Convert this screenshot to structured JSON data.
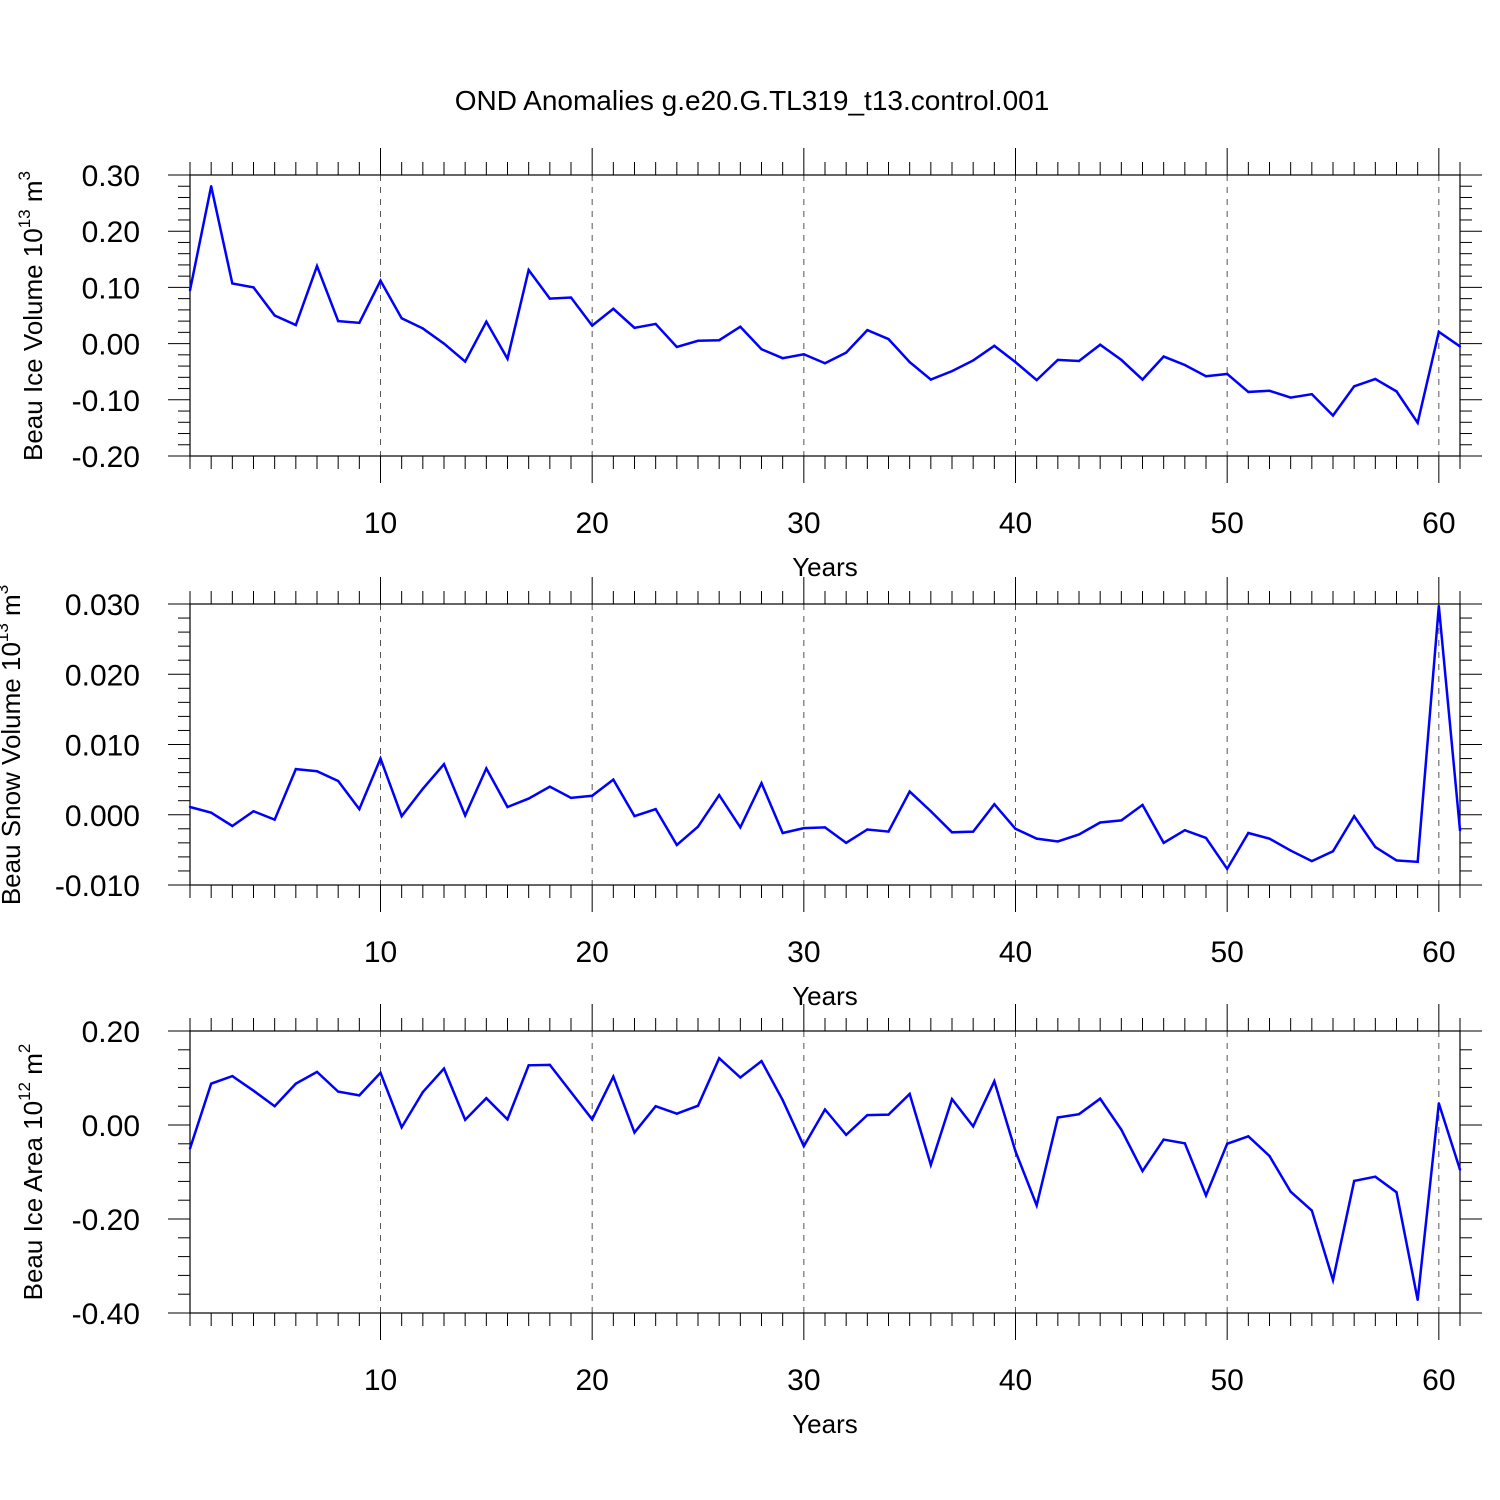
{
  "title": "OND Anomalies g.e20.G.TL319_t13.control.001",
  "colors": {
    "line": "#0000ff",
    "axis": "#000000",
    "grid": "#555555",
    "background": "#ffffff"
  },
  "chart_data": [
    {
      "type": "line",
      "xlabel": "Years",
      "ylabel": {
        "text": "Beau Ice Volume 10",
        "exp": "13",
        "unit": " m",
        "unit_exp": "3"
      },
      "xlim": [
        1,
        61
      ],
      "ylim": [
        -0.2,
        0.3
      ],
      "xticks": [
        10,
        20,
        30,
        40,
        50,
        60
      ],
      "xtick_labels": [
        "10",
        "20",
        "30",
        "40",
        "50",
        "60"
      ],
      "yticks": [
        -0.2,
        -0.1,
        0.0,
        0.1,
        0.2,
        0.3
      ],
      "ytick_labels": [
        "-0.20",
        "-0.10",
        "0.00",
        "0.10",
        "0.20",
        "0.30"
      ],
      "grid": "vertical dashed at x ticks",
      "x": [
        1,
        2,
        3,
        4,
        5,
        6,
        7,
        8,
        9,
        10,
        11,
        12,
        13,
        14,
        15,
        16,
        17,
        18,
        19,
        20,
        21,
        22,
        23,
        24,
        25,
        26,
        27,
        28,
        29,
        30,
        31,
        32,
        33,
        34,
        35,
        36,
        37,
        38,
        39,
        40,
        41,
        42,
        43,
        44,
        45,
        46,
        47,
        48,
        49,
        50,
        51,
        52,
        53,
        54,
        55,
        56,
        57,
        58,
        59,
        60,
        61
      ],
      "values": [
        0.095,
        0.28,
        0.107,
        0.1,
        0.05,
        0.033,
        0.138,
        0.04,
        0.037,
        0.112,
        0.045,
        0.027,
        0.0,
        -0.032,
        0.039,
        -0.027,
        0.131,
        0.08,
        0.082,
        0.032,
        0.062,
        0.028,
        0.035,
        -0.006,
        0.005,
        0.006,
        0.03,
        -0.01,
        -0.026,
        -0.019,
        -0.035,
        -0.016,
        0.024,
        0.008,
        -0.033,
        -0.064,
        -0.049,
        -0.03,
        -0.004,
        -0.033,
        -0.065,
        -0.029,
        -0.031,
        -0.002,
        -0.029,
        -0.064,
        -0.023,
        -0.038,
        -0.058,
        -0.054,
        -0.086,
        -0.084,
        -0.096,
        -0.09,
        -0.128,
        -0.076,
        -0.063,
        -0.085,
        -0.141,
        0.021,
        -0.005
      ]
    },
    {
      "type": "line",
      "xlabel": "Years",
      "ylabel": {
        "text": "Beau Snow Volume 10",
        "exp": "13",
        "unit": " m",
        "unit_exp": "3"
      },
      "xlim": [
        1,
        61
      ],
      "ylim": [
        -0.01,
        0.03
      ],
      "xticks": [
        10,
        20,
        30,
        40,
        50,
        60
      ],
      "xtick_labels": [
        "10",
        "20",
        "30",
        "40",
        "50",
        "60"
      ],
      "yticks": [
        -0.01,
        0.0,
        0.01,
        0.02,
        0.03
      ],
      "ytick_labels": [
        "-0.010",
        "0.000",
        "0.010",
        "0.020",
        "0.030"
      ],
      "grid": "vertical dashed at x ticks",
      "x": [
        1,
        2,
        3,
        4,
        5,
        6,
        7,
        8,
        9,
        10,
        11,
        12,
        13,
        14,
        15,
        16,
        17,
        18,
        19,
        20,
        21,
        22,
        23,
        24,
        25,
        26,
        27,
        28,
        29,
        30,
        31,
        32,
        33,
        34,
        35,
        36,
        37,
        38,
        39,
        40,
        41,
        42,
        43,
        44,
        45,
        46,
        47,
        48,
        49,
        50,
        51,
        52,
        53,
        54,
        55,
        56,
        57,
        58,
        59,
        60,
        61
      ],
      "values": [
        0.0011,
        0.0003,
        -0.0016,
        0.0005,
        -0.0007,
        0.0065,
        0.0062,
        0.0048,
        0.0008,
        0.008,
        -0.0002,
        0.0037,
        0.0072,
        -0.0001,
        0.0066,
        0.0011,
        0.0023,
        0.004,
        0.0024,
        0.0027,
        0.005,
        -0.0002,
        0.0008,
        -0.0043,
        -0.0017,
        0.0028,
        -0.0018,
        0.0045,
        -0.0026,
        -0.0019,
        -0.0018,
        -0.004,
        -0.0021,
        -0.0024,
        0.0033,
        0.0005,
        -0.0025,
        -0.0024,
        0.0015,
        -0.002,
        -0.0034,
        -0.0038,
        -0.0028,
        -0.0011,
        -0.0008,
        0.0014,
        -0.004,
        -0.0022,
        -0.0033,
        -0.0077,
        -0.0026,
        -0.0034,
        -0.0051,
        -0.0066,
        -0.0052,
        -0.0002,
        -0.0046,
        -0.0065,
        -0.0067,
        0.0297,
        -0.0022
      ]
    },
    {
      "type": "line",
      "xlabel": "Years",
      "ylabel": {
        "text": "Beau Ice Area 10",
        "exp": "12",
        "unit": " m",
        "unit_exp": "2"
      },
      "xlim": [
        1,
        61
      ],
      "ylim": [
        -0.4,
        0.2
      ],
      "xticks": [
        10,
        20,
        30,
        40,
        50,
        60
      ],
      "xtick_labels": [
        "10",
        "20",
        "30",
        "40",
        "50",
        "60"
      ],
      "yticks": [
        -0.4,
        -0.2,
        0.0,
        0.2
      ],
      "ytick_labels": [
        "-0.40",
        "-0.20",
        "0.00",
        "0.20"
      ],
      "grid": "vertical dashed at x ticks",
      "x": [
        1,
        2,
        3,
        4,
        5,
        6,
        7,
        8,
        9,
        10,
        11,
        12,
        13,
        14,
        15,
        16,
        17,
        18,
        19,
        20,
        21,
        22,
        23,
        24,
        25,
        26,
        27,
        28,
        29,
        30,
        31,
        32,
        33,
        34,
        35,
        36,
        37,
        38,
        39,
        40,
        41,
        42,
        43,
        44,
        45,
        46,
        47,
        48,
        49,
        50,
        51,
        52,
        53,
        54,
        55,
        56,
        57,
        58,
        59,
        60,
        61
      ],
      "values": [
        -0.05,
        0.088,
        0.104,
        0.073,
        0.04,
        0.088,
        0.113,
        0.071,
        0.063,
        0.111,
        -0.005,
        0.07,
        0.12,
        0.011,
        0.057,
        0.012,
        0.127,
        0.128,
        0.07,
        0.012,
        0.103,
        -0.016,
        0.04,
        0.024,
        0.041,
        0.142,
        0.101,
        0.136,
        0.053,
        -0.045,
        0.033,
        -0.021,
        0.021,
        0.022,
        0.066,
        -0.085,
        0.055,
        -0.003,
        0.093,
        -0.056,
        -0.171,
        0.016,
        0.023,
        0.056,
        -0.01,
        -0.098,
        -0.031,
        -0.039,
        -0.15,
        -0.04,
        -0.024,
        -0.066,
        -0.142,
        -0.182,
        -0.33,
        -0.119,
        -0.11,
        -0.143,
        -0.372,
        0.046,
        -0.095
      ]
    }
  ]
}
